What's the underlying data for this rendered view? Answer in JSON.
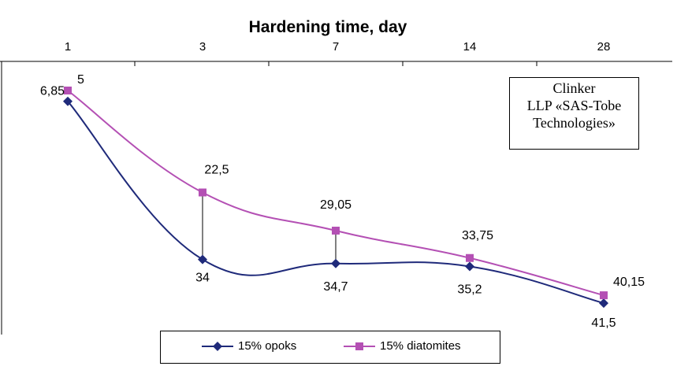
{
  "chart_data": {
    "type": "line",
    "title": "Hardening time, day",
    "categories": [
      "1",
      "3",
      "7",
      "14",
      "28"
    ],
    "ylim": [
      0,
      50
    ],
    "y_inverted": true,
    "series": [
      {
        "name": "15% opoks",
        "values": [
          6.85,
          34,
          34.7,
          35.2,
          41.5
        ],
        "labels": [
          "6,85",
          "34",
          "34,7",
          "35,2",
          "41,5"
        ],
        "color": "#1F2A7A",
        "marker": "diamond"
      },
      {
        "name": "15% diatomites",
        "values": [
          5,
          22.5,
          29.05,
          33.75,
          40.15
        ],
        "labels": [
          "5",
          "22,5",
          "29,05",
          "33,75",
          "40,15"
        ],
        "color": "#B450B4",
        "marker": "square"
      }
    ],
    "annotation": [
      "Clinker",
      "LLP «SAS-Tobe",
      "Technologies»"
    ],
    "legend_position": "bottom"
  }
}
